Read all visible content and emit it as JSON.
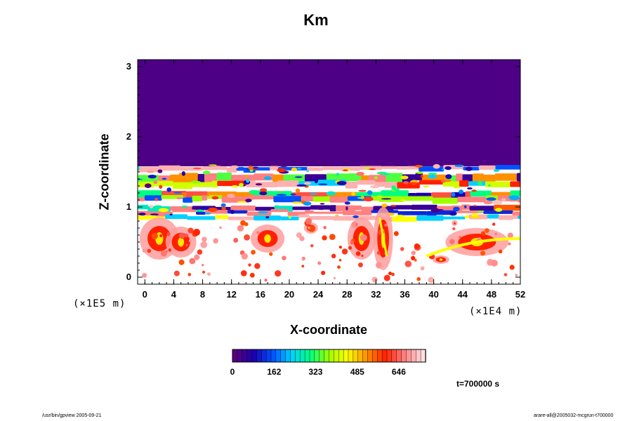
{
  "chart_data": {
    "type": "heatmap",
    "title": "Km",
    "xlabel": "X-coordinate",
    "ylabel": "Z-coordinate",
    "x_unit": "(×1E4 m)",
    "y_unit": "(×1E5 m)",
    "x_ticks": [
      "0",
      "4",
      "8",
      "12",
      "16",
      "20",
      "24",
      "28",
      "32",
      "36",
      "40",
      "44",
      "48",
      "52"
    ],
    "y_ticks": [
      "0",
      "1",
      "2",
      "3"
    ],
    "xlim": [
      -1,
      52
    ],
    "ylim": [
      -0.1,
      3.1
    ],
    "colorbar": {
      "ticks": [
        "0",
        "162",
        "323",
        "485",
        "646"
      ],
      "tick_values": [
        0,
        162,
        323,
        485,
        646
      ],
      "range": [
        0,
        750
      ],
      "colormap": [
        "#5a007a",
        "#1a00b0",
        "#0050ff",
        "#00d0ff",
        "#00ff80",
        "#a0ff00",
        "#ffff00",
        "#ff9000",
        "#ff2000",
        "#ff8080",
        "#ffe0e0"
      ]
    },
    "field_description": {
      "upper_region_value": 0,
      "upper_region_z_start": 1.6,
      "bands": [
        {
          "z": 1.55,
          "level": "high"
        },
        {
          "z": 1.45,
          "level": "mixed"
        },
        {
          "z": 1.2,
          "level": "mixed"
        },
        {
          "z": 0.95,
          "level": "layered"
        },
        {
          "z": 0.4,
          "level": "high, turbulent near surface"
        }
      ]
    },
    "time_label": "t=700000 s"
  },
  "footer": {
    "left": "/usr/bin/gpview 2005-09-21",
    "right": "arare-all@2005032-mcgrun-t700000"
  }
}
